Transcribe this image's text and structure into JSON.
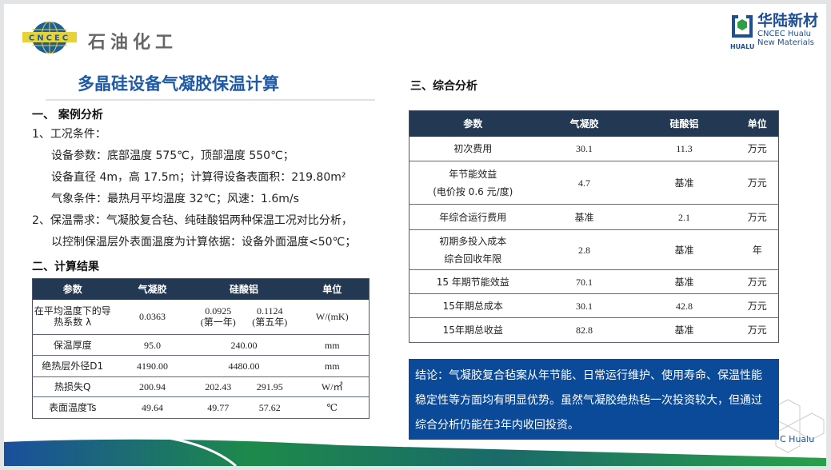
{
  "header": {
    "logo_left_text": "石油化工",
    "logo_globe_text": "CNCEC",
    "brand_cn": "华陆新材",
    "brand_en1": "CNCEC Hualu",
    "brand_en2": "New Materials",
    "brand_mark_text": "HUALU"
  },
  "title": "多晶硅设备气凝胶保温计算",
  "section1": {
    "heading": "一、 案例分析",
    "lines": [
      "1、工况条件：",
      "设备参数：底部温度 575℃，顶部温度 550℃；",
      "设备直径 4m，高 17.5m；计算得设备表面积：219.80m²",
      "气象条件：最热月平均温度 32℃；风速：1.6m/s",
      "2、保温需求：气凝胶复合毡、纯硅酸铝两种保温工况对比分析，",
      "以控制保温层外表面温度为计算依据：设备外面温度<50℃；"
    ]
  },
  "section2": {
    "heading": "二、计算结果",
    "headers": [
      "参数",
      "气凝胶",
      "硅酸铝",
      "单位"
    ],
    "rows": [
      {
        "param": "在平均温度下的导热系数 λ",
        "aerogel": "0.0363",
        "si1": "0.0925\n(第一年)",
        "si2": "0.1124\n(第五年)",
        "unit": "W/(mK)"
      },
      {
        "param": "保温厚度",
        "aerogel": "95.0",
        "si": "240.00",
        "unit": "mm"
      },
      {
        "param": "绝热层外径D1",
        "aerogel": "4190.00",
        "si": "4480.00",
        "unit": "mm"
      },
      {
        "param": "热损失Q",
        "aerogel": "200.94",
        "si1": "202.43",
        "si2": "291.95",
        "unit": "W/㎡"
      },
      {
        "param": "表面温度Ts",
        "aerogel": "49.64",
        "si1": "49.77",
        "si2": "57.62",
        "unit": "℃"
      }
    ]
  },
  "section3": {
    "heading": "三、综合分析",
    "headers": [
      "参数",
      "气凝胶",
      "硅酸铝",
      "单位"
    ],
    "rows": [
      [
        "初次费用",
        "30.1",
        "11.3",
        "万元"
      ],
      [
        "年节能效益\n(电价按 0.6 元/度)",
        "4.7",
        "基准",
        "万元"
      ],
      [
        "年综合运行费用",
        "基准",
        "2.1",
        "万元"
      ],
      [
        "初期多投入成本\n综合回收年限",
        "2.8",
        "基准",
        "年"
      ],
      [
        "15 年期节能效益",
        "70.1",
        "基准",
        "万元"
      ],
      [
        "15年期总成本",
        "30.1",
        "42.8",
        "万元"
      ],
      [
        "15年期总收益",
        "82.8",
        "基准",
        "万元"
      ]
    ]
  },
  "conclusion": "结论：气凝胶复合毡案从年节能、日常运行维护、使用寿命、保温性能稳定性等方面均有明显优势。虽然气凝胶绝热毡一次投资较大，但通过综合分析仍能在3年内收回投资。",
  "watermark": "C Hualu",
  "colors": {
    "title": "#1f5aa6",
    "table_header": "#233853",
    "conclusion_bg": "#0b4a98"
  }
}
